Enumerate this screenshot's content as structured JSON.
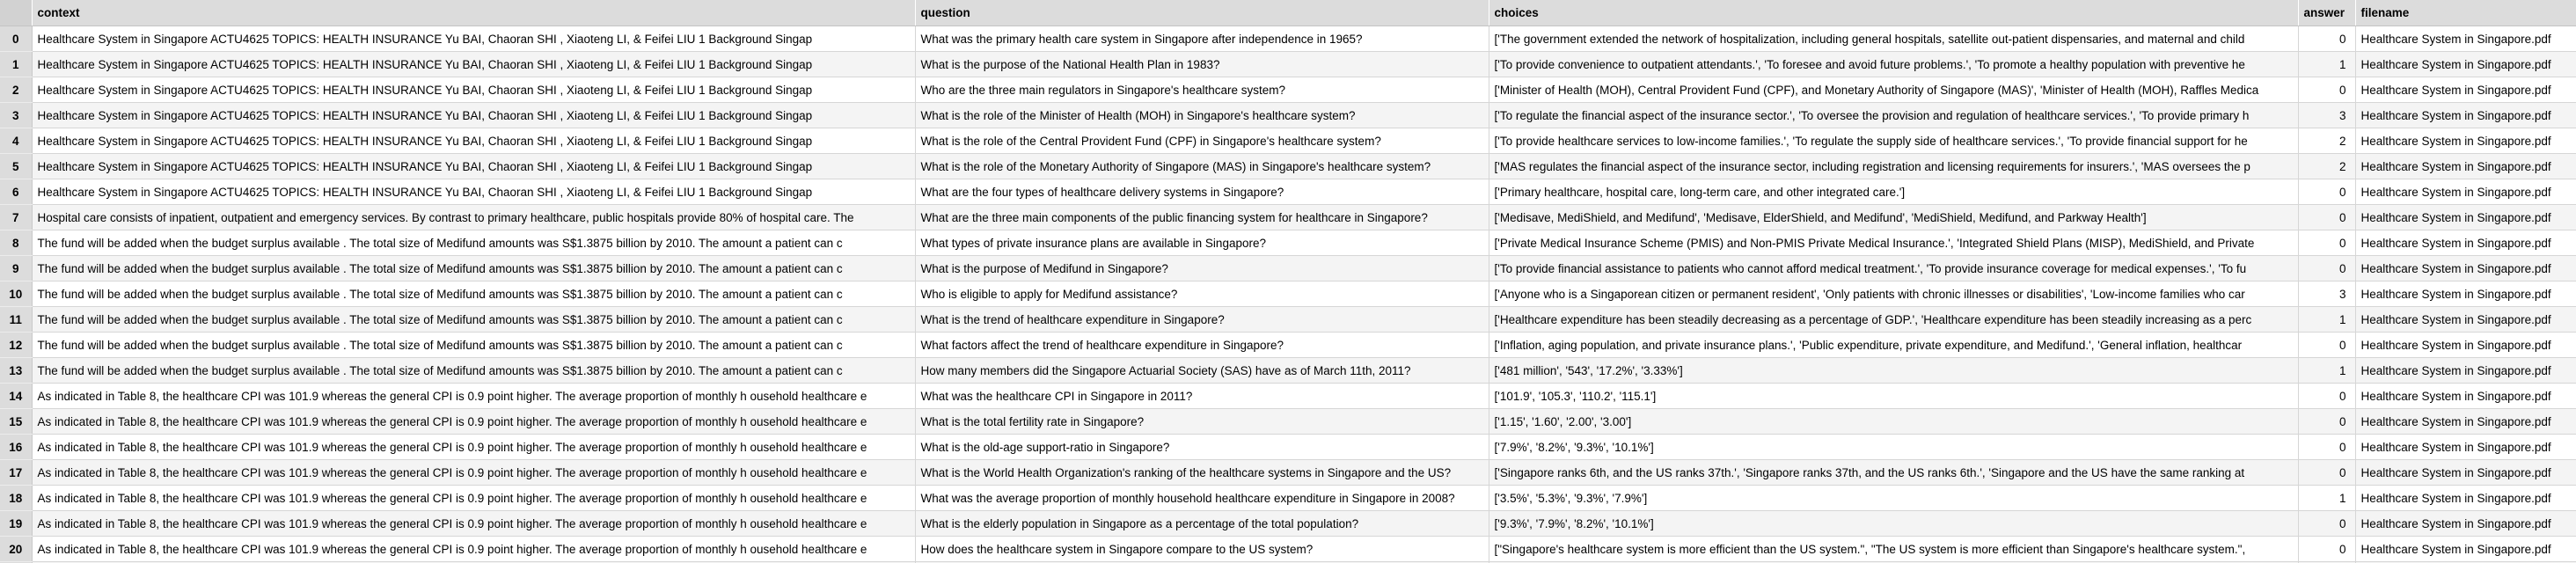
{
  "columns": {
    "context": "context",
    "question": "question",
    "choices": "choices",
    "answer": "answer",
    "filename": "filename"
  },
  "rows": [
    {
      "index": "0",
      "context": "Healthcare System in Singapore   ACTU4625 TOPICS: HEALTH INSURANCE   Yu BAI, Chaoran SHI , Xiaoteng LI, & Feifei LIU       1   Background   Singap",
      "question": "What was the primary health care system in Singapore after independence in 1965?",
      "choices": "['The government extended the network of hospitalization, including general hospitals, satellite out-patient dispensaries, and maternal and child",
      "answer": "0",
      "filename": "Healthcare System in Singapore.pdf"
    },
    {
      "index": "1",
      "context": "Healthcare System in Singapore   ACTU4625 TOPICS: HEALTH INSURANCE   Yu BAI, Chaoran SHI , Xiaoteng LI, & Feifei LIU       1   Background   Singap",
      "question": "What is the purpose of the National Health Plan in 1983?",
      "choices": "['To provide convenience to outpatient attendants.', 'To foresee and avoid future problems.', 'To promote a healthy population with preventive he",
      "answer": "1",
      "filename": "Healthcare System in Singapore.pdf"
    },
    {
      "index": "2",
      "context": "Healthcare System in Singapore   ACTU4625 TOPICS: HEALTH INSURANCE   Yu BAI, Chaoran SHI , Xiaoteng LI, & Feifei LIU       1   Background   Singap",
      "question": "Who are the three main regulators in Singapore's healthcare system?",
      "choices": "['Minister of Health (MOH), Central Provident Fund (CPF), and Monetary Authority of Singapore (MAS)', 'Minister of Health (MOH), Raffles Medica",
      "answer": "0",
      "filename": "Healthcare System in Singapore.pdf"
    },
    {
      "index": "3",
      "context": "Healthcare System in Singapore   ACTU4625 TOPICS: HEALTH INSURANCE   Yu BAI, Chaoran SHI , Xiaoteng LI, & Feifei LIU       1   Background   Singap",
      "question": "What is the role of the Minister of Health (MOH) in Singapore's healthcare system?",
      "choices": "['To regulate the financial aspect of the insurance sector.', 'To oversee the provision and regulation of healthcare services.', 'To provide primary h",
      "answer": "3",
      "filename": "Healthcare System in Singapore.pdf"
    },
    {
      "index": "4",
      "context": "Healthcare System in Singapore   ACTU4625 TOPICS: HEALTH INSURANCE   Yu BAI, Chaoran SHI , Xiaoteng LI, & Feifei LIU       1   Background   Singap",
      "question": "What is the role of the Central Provident Fund (CPF) in Singapore's healthcare system?",
      "choices": "['To provide healthcare services to low-income families.', 'To regulate the supply side of healthcare services.', 'To provide financial support for he",
      "answer": "2",
      "filename": "Healthcare System in Singapore.pdf"
    },
    {
      "index": "5",
      "context": "Healthcare System in Singapore   ACTU4625 TOPICS: HEALTH INSURANCE   Yu BAI, Chaoran SHI , Xiaoteng LI, & Feifei LIU       1   Background   Singap",
      "question": "What is the role of the Monetary Authority of Singapore (MAS) in Singapore's healthcare system?",
      "choices": "['MAS regulates the financial aspect of the insurance sector, including registration and licensing requirements for insurers.', 'MAS oversees the p",
      "answer": "2",
      "filename": "Healthcare System in Singapore.pdf"
    },
    {
      "index": "6",
      "context": "Healthcare System in Singapore   ACTU4625 TOPICS: HEALTH INSURANCE   Yu BAI, Chaoran SHI , Xiaoteng LI, & Feifei LIU       1   Background   Singap",
      "question": "What are the four types of healthcare delivery systems in Singapore?",
      "choices": "['Primary healthcare, hospital care, long-term care, and other integrated care.']",
      "answer": "0",
      "filename": "Healthcare System in Singapore.pdf"
    },
    {
      "index": "7",
      "context": "Hospital care consists of inpatient, outpatient and emergency services. By contrast to primary  healthcare, public hospitals provide 80% of hospital care. The",
      "question": "What are the three main components of the public financing system for healthcare in Singapore?",
      "choices": "['Medisave, MediShield, and Medifund', 'Medisave, ElderShield, and Medifund', 'MediShield, Medifund, and Parkway Health']",
      "answer": "0",
      "filename": "Healthcare System in Singapore.pdf"
    },
    {
      "index": "8",
      "context": "The fund will  be added  when the budget surplus available . The  total size of Medifund amounts  was  S$1.3875 billion by 2010.  The amount a patient can c",
      "question": "What types of private insurance plans are available in Singapore?",
      "choices": "['Private Medical Insurance Scheme (PMIS) and Non-PMIS Private Medical Insurance.', 'Integrated Shield Plans (MISP), MediShield, and Private",
      "answer": "0",
      "filename": "Healthcare System in Singapore.pdf"
    },
    {
      "index": "9",
      "context": "The fund will  be added  when the budget surplus available . The  total size of Medifund amounts  was  S$1.3875 billion by 2010.  The amount a patient can c",
      "question": "What is the purpose of Medifund in Singapore?",
      "choices": "['To provide financial assistance to patients who cannot afford medical treatment.', 'To provide insurance coverage for medical expenses.', 'To fu",
      "answer": "0",
      "filename": "Healthcare System in Singapore.pdf"
    },
    {
      "index": "10",
      "context": "The fund will  be added  when the budget surplus available . The  total size of Medifund amounts  was  S$1.3875 billion by 2010.  The amount a patient can c",
      "question": "Who is eligible to apply for Medifund assistance?",
      "choices": "['Anyone who is a Singaporean citizen or permanent resident', 'Only patients with chronic illnesses or disabilities', 'Low-income families who car",
      "answer": "3",
      "filename": "Healthcare System in Singapore.pdf"
    },
    {
      "index": "11",
      "context": "The fund will  be added  when the budget surplus available . The  total size of Medifund amounts  was  S$1.3875 billion by 2010.  The amount a patient can c",
      "question": "What is the trend of healthcare expenditure in Singapore?",
      "choices": "['Healthcare expenditure has been steadily decreasing as a percentage of GDP.', 'Healthcare expenditure has been steadily increasing as a perc",
      "answer": "1",
      "filename": "Healthcare System in Singapore.pdf"
    },
    {
      "index": "12",
      "context": "The fund will  be added  when the budget surplus available . The  total size of Medifund amounts  was  S$1.3875 billion by 2010.  The amount a patient can c",
      "question": "What factors affect the trend of healthcare expenditure in Singapore?",
      "choices": "['Inflation, aging population, and private insurance plans.', 'Public expenditure, private expenditure, and Medifund.', 'General inflation, healthcar",
      "answer": "0",
      "filename": "Healthcare System in Singapore.pdf"
    },
    {
      "index": "13",
      "context": "The fund will  be added  when the budget surplus available . The  total size of Medifund amounts  was  S$1.3875 billion by 2010.  The amount a patient can c",
      "question": "How many members did the Singapore Actuarial Society (SAS) have as of March 11th, 2011?",
      "choices": "['481 million', '543', '17.2%', '3.33%']",
      "answer": "1",
      "filename": "Healthcare System in Singapore.pdf"
    },
    {
      "index": "14",
      "context": "As indicated in Table 8, the healthcare CPI was 101.9 whereas the general  CPI is 0.9 point higher. The average proportion of monthly h ousehold healthcare e",
      "question": "What was the healthcare CPI in Singapore in 2011?",
      "choices": "['101.9', '105.3', '110.2', '115.1']",
      "answer": "0",
      "filename": "Healthcare System in Singapore.pdf"
    },
    {
      "index": "15",
      "context": "As indicated in Table 8, the healthcare CPI was 101.9 whereas the general  CPI is 0.9 point higher. The average proportion of monthly h ousehold healthcare e",
      "question": "What is the total fertility rate in Singapore?",
      "choices": "['1.15', '1.60', '2.00', '3.00']",
      "answer": "0",
      "filename": "Healthcare System in Singapore.pdf"
    },
    {
      "index": "16",
      "context": "As indicated in Table 8, the healthcare CPI was 101.9 whereas the general  CPI is 0.9 point higher. The average proportion of monthly h ousehold healthcare e",
      "question": "What is the old-age support-ratio in Singapore?",
      "choices": "['7.9%', '8.2%', '9.3%', '10.1%']",
      "answer": "0",
      "filename": "Healthcare System in Singapore.pdf"
    },
    {
      "index": "17",
      "context": "As indicated in Table 8, the healthcare CPI was 101.9 whereas the general  CPI is 0.9 point higher. The average proportion of monthly h ousehold healthcare e",
      "question": "What is the World Health Organization's ranking of the healthcare systems in Singapore and the US?",
      "choices": "['Singapore ranks 6th, and the US ranks 37th.', 'Singapore ranks 37th, and the US ranks 6th.', 'Singapore and the US have the same ranking at",
      "answer": "0",
      "filename": "Healthcare System in Singapore.pdf"
    },
    {
      "index": "18",
      "context": "As indicated in Table 8, the healthcare CPI was 101.9 whereas the general  CPI is 0.9 point higher. The average proportion of monthly h ousehold healthcare e",
      "question": "What was the average proportion of monthly household healthcare expenditure in Singapore in 2008?",
      "choices": "['3.5%', '5.3%', '9.3%', '7.9%']",
      "answer": "1",
      "filename": "Healthcare System in Singapore.pdf"
    },
    {
      "index": "19",
      "context": "As indicated in Table 8, the healthcare CPI was 101.9 whereas the general  CPI is 0.9 point higher. The average proportion of monthly h ousehold healthcare e",
      "question": "What is the elderly population in Singapore as a percentage of the total population?",
      "choices": "['9.3%', '7.9%', '8.2%', '10.1%']",
      "answer": "0",
      "filename": "Healthcare System in Singapore.pdf"
    },
    {
      "index": "20",
      "context": "As indicated in Table 8, the healthcare CPI was 101.9 whereas the general  CPI is 0.9 point higher. The average proportion of monthly h ousehold healthcare e",
      "question": "How does the healthcare system in Singapore compare to the US system?",
      "choices": "[\"Singapore's healthcare system is more efficient than the US system.\", \"The US system is more efficient than Singapore's healthcare system.\",",
      "answer": "0",
      "filename": "Healthcare System in Singapore.pdf"
    }
  ]
}
